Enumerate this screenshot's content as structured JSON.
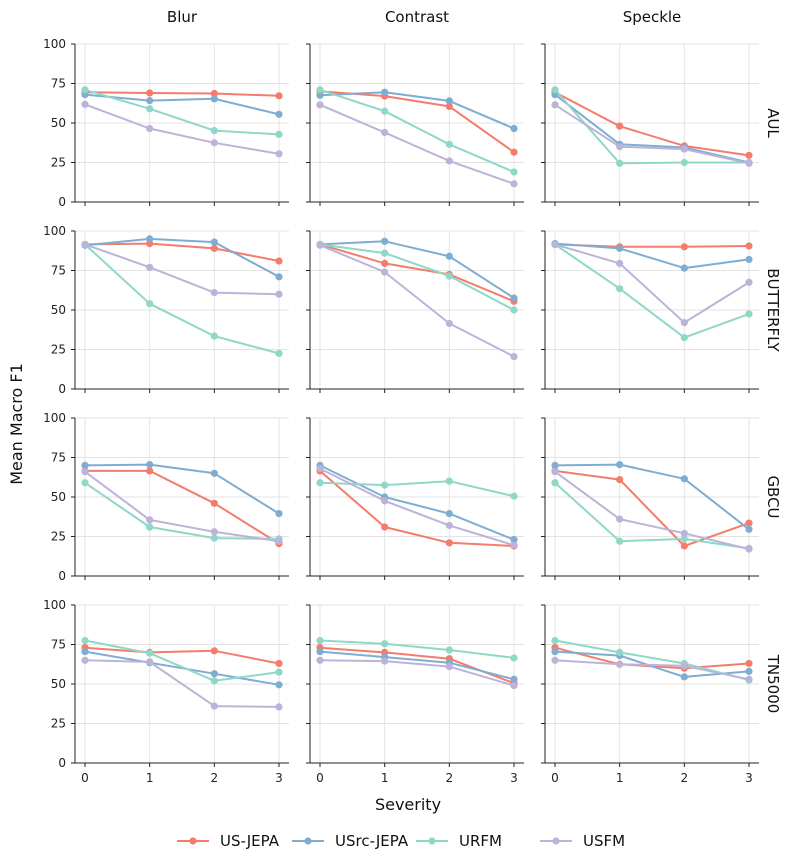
{
  "chart_data": {
    "type": "line",
    "ylabel": "Mean Macro F1",
    "xlabel": "Severity",
    "x": [
      0,
      1,
      2,
      3
    ],
    "xticks": [
      "0",
      "1",
      "2",
      "3"
    ],
    "ylim": [
      0,
      100
    ],
    "yticks": [
      "0",
      "25",
      "50",
      "75",
      "100"
    ],
    "grid": true,
    "legend_position": "bottom-center",
    "columns": [
      "Blur",
      "Contrast",
      "Speckle"
    ],
    "rows": [
      "AUL",
      "BUTTERFLY",
      "GBCU",
      "TN5000"
    ],
    "series": [
      {
        "name": "US-JEPA",
        "color": "#f47c6c"
      },
      {
        "name": "USrc-JEPA",
        "color": "#7fadd1"
      },
      {
        "name": "URFM",
        "color": "#8fd7c6"
      },
      {
        "name": "USFM",
        "color": "#bcb3d8"
      }
    ],
    "panels": [
      [
        {
          "US-JEPA": [
            69.5,
            69,
            68.7,
            67.2
          ],
          "USrc-JEPA": [
            68,
            64.2,
            65.3,
            55.5
          ],
          "URFM": [
            71,
            59,
            45.2,
            42.8
          ],
          "USFM": [
            61.8,
            46.5,
            37.5,
            30.5
          ]
        },
        {
          "US-JEPA": [
            70,
            67,
            60.5,
            31.5
          ],
          "USrc-JEPA": [
            67.5,
            69.5,
            64,
            46.5
          ],
          "URFM": [
            71,
            57.5,
            36.5,
            19
          ],
          "USFM": [
            61.5,
            44,
            26,
            11.5
          ]
        },
        {
          "US-JEPA": [
            69.5,
            48,
            35.5,
            29.5
          ],
          "USrc-JEPA": [
            68,
            36.5,
            34.5,
            25
          ],
          "URFM": [
            71,
            24.5,
            25,
            25
          ],
          "USFM": [
            61.5,
            35,
            33.5,
            24.5
          ]
        }
      ],
      [
        {
          "US-JEPA": [
            91.5,
            92,
            89,
            81
          ],
          "USrc-JEPA": [
            91,
            95,
            93,
            71
          ],
          "URFM": [
            91.5,
            54,
            33.5,
            22.5
          ],
          "USFM": [
            91.5,
            77,
            61,
            60
          ]
        },
        {
          "US-JEPA": [
            91.5,
            79.5,
            72.5,
            55.5
          ],
          "USrc-JEPA": [
            91.5,
            93.5,
            84,
            57.5
          ],
          "URFM": [
            91.5,
            86,
            71.5,
            50
          ],
          "USFM": [
            91,
            74,
            41.5,
            20.5
          ]
        },
        {
          "US-JEPA": [
            91.5,
            90,
            90,
            90.5
          ],
          "USrc-JEPA": [
            92,
            89,
            76.5,
            82
          ],
          "URFM": [
            91.5,
            63.5,
            32.5,
            47.5
          ],
          "USFM": [
            91.5,
            79.5,
            42,
            67.5
          ]
        }
      ],
      [
        {
          "US-JEPA": [
            66.5,
            66.5,
            46,
            20.5
          ],
          "USrc-JEPA": [
            70,
            70.5,
            65,
            39.5
          ],
          "URFM": [
            59,
            31,
            24,
            23.5
          ],
          "USFM": [
            66,
            35.5,
            28,
            22
          ]
        },
        {
          "US-JEPA": [
            66.5,
            31,
            21,
            19
          ],
          "USrc-JEPA": [
            70,
            50,
            39.5,
            23
          ],
          "URFM": [
            59,
            57.5,
            60,
            50.5
          ],
          "USFM": [
            68,
            47.5,
            32,
            19.5
          ]
        },
        {
          "US-JEPA": [
            66.5,
            61,
            19,
            33.5
          ],
          "USrc-JEPA": [
            70,
            70.5,
            61.5,
            29.5
          ],
          "URFM": [
            59,
            22,
            23.5,
            17.5
          ],
          "USFM": [
            66,
            36,
            27,
            17
          ]
        }
      ],
      [
        {
          "US-JEPA": [
            73,
            70,
            71,
            63
          ],
          "USrc-JEPA": [
            70.5,
            63.5,
            56.5,
            49.5
          ],
          "URFM": [
            77.5,
            69.5,
            52,
            57.5
          ],
          "USFM": [
            65,
            64,
            36,
            35.5
          ]
        },
        {
          "US-JEPA": [
            73,
            70,
            66,
            50.5
          ],
          "USrc-JEPA": [
            70.5,
            67,
            63.5,
            53
          ],
          "URFM": [
            77.5,
            75.5,
            71.5,
            66.5
          ],
          "USFM": [
            65,
            64.5,
            61,
            49
          ]
        },
        {
          "US-JEPA": [
            73,
            62.5,
            60,
            63
          ],
          "USrc-JEPA": [
            70.5,
            68,
            54.5,
            58
          ],
          "URFM": [
            77.5,
            70,
            63,
            52.5
          ],
          "USFM": [
            65,
            62.5,
            61.5,
            53
          ]
        }
      ]
    ]
  }
}
